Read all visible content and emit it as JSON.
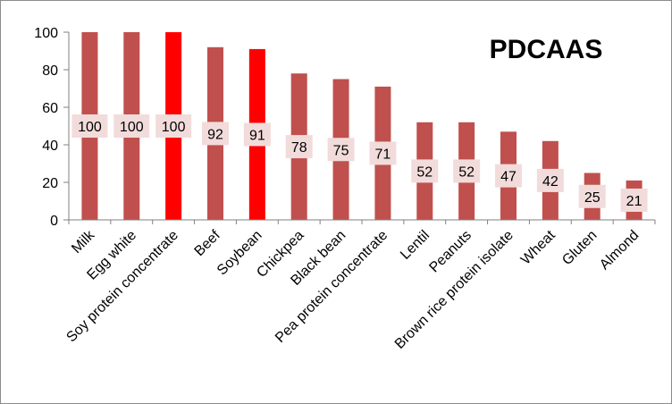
{
  "chart_data": {
    "type": "bar",
    "title": "PDCAAS",
    "categories": [
      "Milk",
      "Egg white",
      "Soy protein concentrate",
      "Beef",
      "Soybean",
      "Chickpea",
      "Black bean",
      "Pea protein concentrate",
      "Lentil",
      "Peanuts",
      "Brown rice protein isolate",
      "Wheat",
      "Gluten",
      "Almond"
    ],
    "values": [
      100,
      100,
      100,
      92,
      91,
      78,
      75,
      71,
      52,
      52,
      47,
      42,
      25,
      21
    ],
    "highlighted": [
      "Soy protein concentrate",
      "Soybean"
    ],
    "ylim": [
      0,
      100
    ],
    "yticks": [
      0,
      20,
      40,
      60,
      80,
      100
    ],
    "xlabel": "",
    "ylabel": "",
    "grid": false,
    "legend": "none",
    "colors": {
      "bar": "#c0504d",
      "highlight": "#ff0000",
      "label_box": "#f2dcdb",
      "axis": "#808080"
    }
  }
}
